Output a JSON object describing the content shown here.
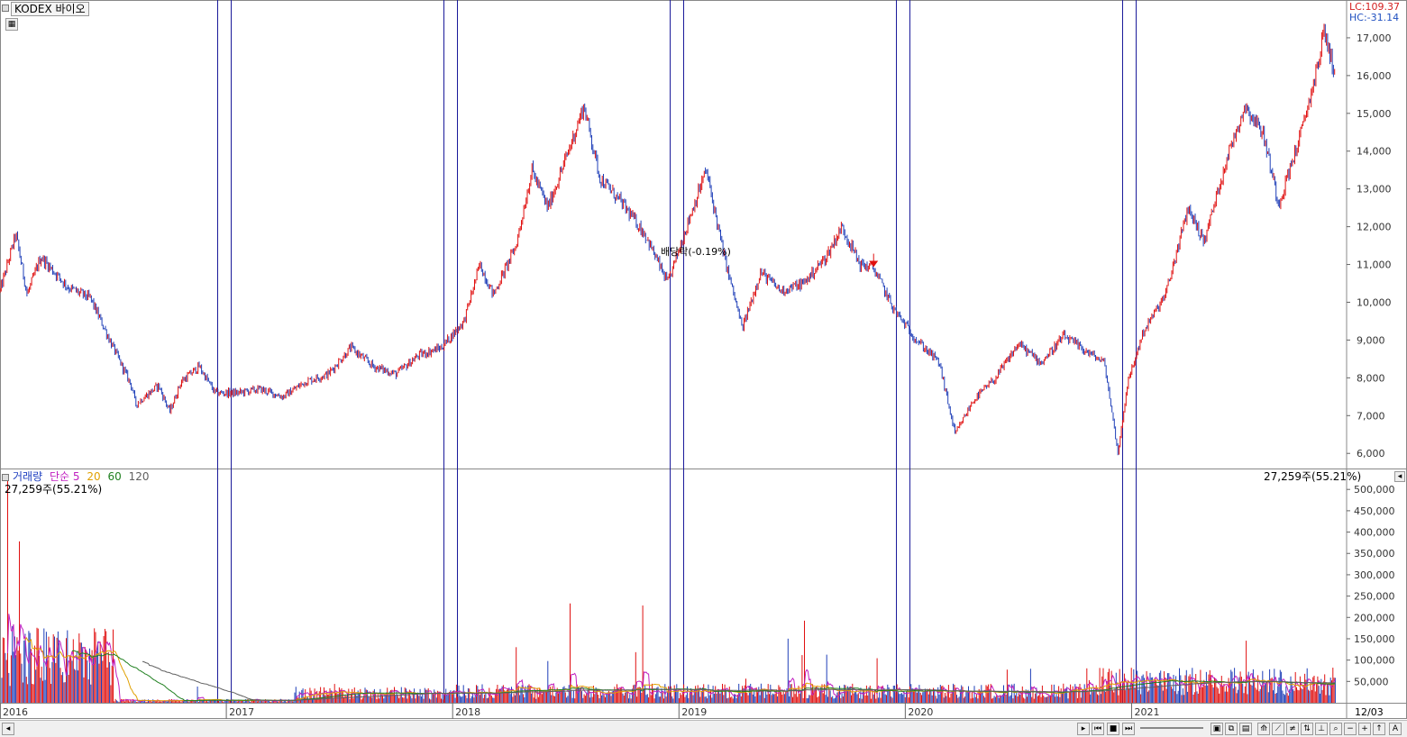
{
  "header": {
    "title": "KODEX 바이오",
    "lc_label": "LC:109.37",
    "hc_label": "HC:-31.14",
    "lc_color": "#d42020",
    "hc_color": "#2050c0"
  },
  "annotation": {
    "text": "배당락(-0.19%)",
    "color": "#e01010"
  },
  "volume_legend": {
    "name": "거래량",
    "ma_type": "단순",
    "periods": [
      "5",
      "20",
      "60",
      "120"
    ],
    "colors": [
      "#c020c0",
      "#e0a000",
      "#208020",
      "#606060"
    ],
    "name_color": "#2040c0",
    "ma_type_color": "#c020c0",
    "current_value": "27,259주(55.21%)",
    "right_value": "27,259주(55.21%)"
  },
  "chart_data": {
    "type": "candlestick",
    "price_axis": {
      "ticks": [
        "17,000",
        "16,000",
        "15,000",
        "14,000",
        "13,000",
        "12,000",
        "11,000",
        "10,000",
        "9,000",
        "8,000",
        "7,000",
        "6,000"
      ],
      "tick_values": [
        17000,
        16000,
        15000,
        14000,
        13000,
        12000,
        11000,
        10000,
        9000,
        8000,
        7000,
        6000
      ],
      "ylim": [
        5600,
        18000
      ]
    },
    "volume_axis": {
      "ticks": [
        "500,000",
        "450,000",
        "400,000",
        "350,000",
        "300,000",
        "250,000",
        "200,000",
        "150,000",
        "100,000",
        "50,000"
      ],
      "tick_values": [
        500000,
        450000,
        400000,
        350000,
        300000,
        250000,
        200000,
        150000,
        100000,
        50000
      ],
      "ylim": [
        0,
        530000
      ]
    },
    "x_axis": {
      "labels": [
        "2016",
        "2017",
        "2018",
        "2019",
        "2020",
        "2021"
      ],
      "label_positions_year": [
        2016.0,
        2017.0,
        2018.0,
        2019.0,
        2020.0,
        2021.0
      ],
      "end_label": "12/03",
      "xlim_year": [
        2016.0,
        2021.95
      ]
    },
    "price_series_approx": [
      {
        "x": 2016.0,
        "y": 10300
      },
      {
        "x": 2016.07,
        "y": 11800
      },
      {
        "x": 2016.12,
        "y": 10200
      },
      {
        "x": 2016.18,
        "y": 11200
      },
      {
        "x": 2016.3,
        "y": 10400
      },
      {
        "x": 2016.4,
        "y": 10100
      },
      {
        "x": 2016.5,
        "y": 8800
      },
      {
        "x": 2016.58,
        "y": 7800
      },
      {
        "x": 2016.6,
        "y": 7300
      },
      {
        "x": 2016.7,
        "y": 7800
      },
      {
        "x": 2016.75,
        "y": 7100
      },
      {
        "x": 2016.8,
        "y": 7900
      },
      {
        "x": 2016.88,
        "y": 8300
      },
      {
        "x": 2016.95,
        "y": 7600
      },
      {
        "x": 2017.05,
        "y": 7600
      },
      {
        "x": 2017.15,
        "y": 7700
      },
      {
        "x": 2017.25,
        "y": 7500
      },
      {
        "x": 2017.35,
        "y": 7900
      },
      {
        "x": 2017.45,
        "y": 8100
      },
      {
        "x": 2017.55,
        "y": 8800
      },
      {
        "x": 2017.65,
        "y": 8300
      },
      {
        "x": 2017.75,
        "y": 8100
      },
      {
        "x": 2017.85,
        "y": 8600
      },
      {
        "x": 2017.95,
        "y": 8800
      },
      {
        "x": 2018.05,
        "y": 9500
      },
      {
        "x": 2018.12,
        "y": 11000
      },
      {
        "x": 2018.18,
        "y": 10200
      },
      {
        "x": 2018.28,
        "y": 11500
      },
      {
        "x": 2018.35,
        "y": 13500
      },
      {
        "x": 2018.42,
        "y": 12500
      },
      {
        "x": 2018.5,
        "y": 13800
      },
      {
        "x": 2018.58,
        "y": 15200
      },
      {
        "x": 2018.65,
        "y": 13300
      },
      {
        "x": 2018.75,
        "y": 12600
      },
      {
        "x": 2018.85,
        "y": 11800
      },
      {
        "x": 2018.95,
        "y": 10500
      },
      {
        "x": 2019.05,
        "y": 12300
      },
      {
        "x": 2019.12,
        "y": 13500
      },
      {
        "x": 2019.2,
        "y": 11200
      },
      {
        "x": 2019.28,
        "y": 9300
      },
      {
        "x": 2019.36,
        "y": 10800
      },
      {
        "x": 2019.45,
        "y": 10300
      },
      {
        "x": 2019.55,
        "y": 10500
      },
      {
        "x": 2019.65,
        "y": 11200
      },
      {
        "x": 2019.72,
        "y": 12000
      },
      {
        "x": 2019.8,
        "y": 11000
      },
      {
        "x": 2019.86,
        "y": 10900
      },
      {
        "x": 2019.95,
        "y": 9800
      },
      {
        "x": 2020.05,
        "y": 9000
      },
      {
        "x": 2020.15,
        "y": 8400
      },
      {
        "x": 2020.22,
        "y": 6500
      },
      {
        "x": 2020.3,
        "y": 7400
      },
      {
        "x": 2020.4,
        "y": 8000
      },
      {
        "x": 2020.5,
        "y": 8900
      },
      {
        "x": 2020.6,
        "y": 8400
      },
      {
        "x": 2020.7,
        "y": 9100
      },
      {
        "x": 2020.8,
        "y": 8700
      },
      {
        "x": 2020.88,
        "y": 8400
      },
      {
        "x": 2020.94,
        "y": 6000
      },
      {
        "x": 2020.98,
        "y": 7800
      },
      {
        "x": 2021.05,
        "y": 9200
      },
      {
        "x": 2021.15,
        "y": 10200
      },
      {
        "x": 2021.25,
        "y": 12500
      },
      {
        "x": 2021.32,
        "y": 11600
      },
      {
        "x": 2021.42,
        "y": 13800
      },
      {
        "x": 2021.5,
        "y": 15200
      },
      {
        "x": 2021.58,
        "y": 14500
      },
      {
        "x": 2021.65,
        "y": 12600
      },
      {
        "x": 2021.75,
        "y": 14500
      },
      {
        "x": 2021.82,
        "y": 16200
      },
      {
        "x": 2021.85,
        "y": 17200
      },
      {
        "x": 2021.9,
        "y": 16000
      }
    ],
    "markers": [
      {
        "x": 2019.86,
        "y": 11000,
        "label_ref": "annotation.text"
      }
    ],
    "vertical_lines_year": [
      2016.96,
      2017.02,
      2017.96,
      2018.02,
      2018.96,
      2019.02,
      2019.96,
      2020.02,
      2020.96,
      2021.02
    ]
  }
}
